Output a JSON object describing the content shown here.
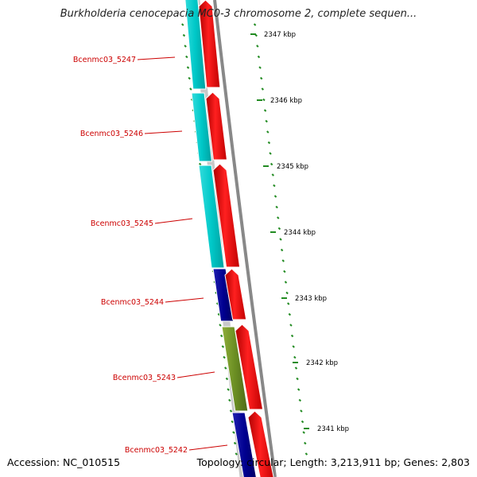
{
  "title": "Burkholderia cenocepacia MC0-3 chromosome 2, complete sequen...",
  "footer": {
    "accession": "Accession: NC_010515",
    "topology": "Topology: circular; Length: 3,213,911 bp; Genes: 2,803"
  },
  "kbp_labels": [
    "2347 kbp",
    "2346 kbp",
    "2345 kbp",
    "2344 kbp",
    "2343 kbp",
    "2342 kbp",
    "2341 kbp"
  ],
  "gene_labels": [
    "Bcenmc03_5247",
    "Bcenmc03_5246",
    "Bcenmc03_5245",
    "Bcenmc03_5244",
    "Bcenmc03_5243",
    "Bcenmc03_5242"
  ],
  "colors": {
    "forward_cds": "#ff0000",
    "reverse_cds_cyan": "#00cccc",
    "reverse_cds_navy": "#000080",
    "reverse_cds_olive": "#6b8e23",
    "gene_label": "#cc0000",
    "tick": "#228b22",
    "backbone": "#888888"
  }
}
